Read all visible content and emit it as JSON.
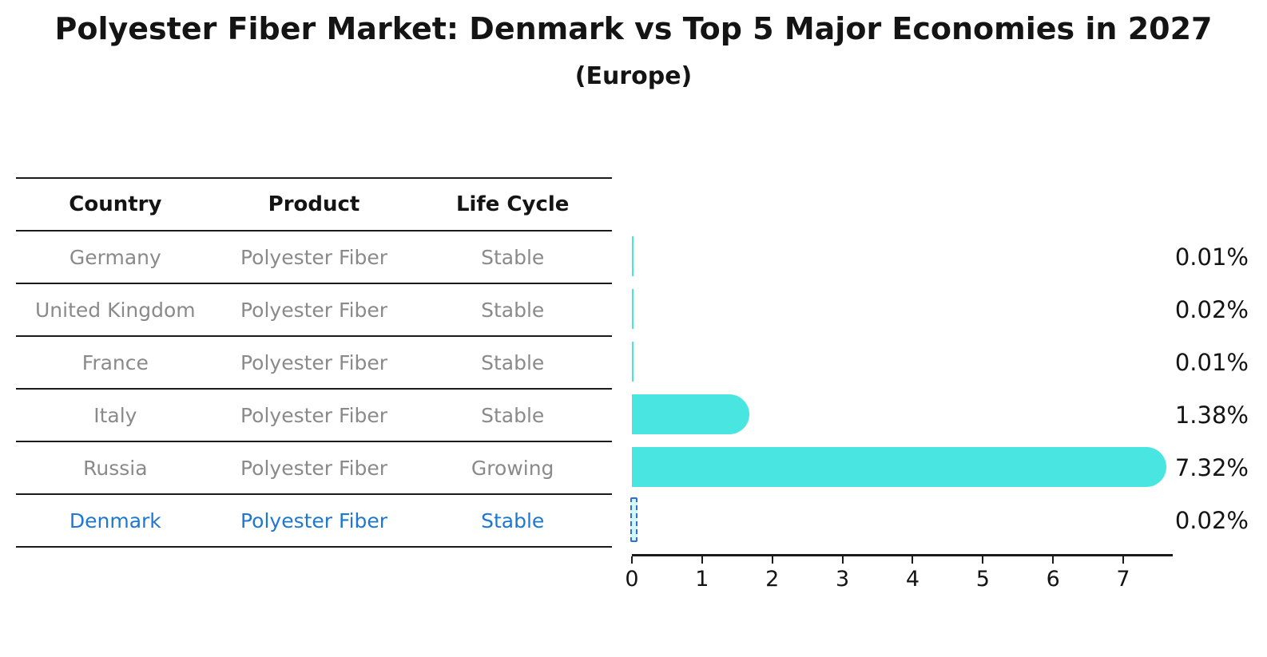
{
  "title": "Polyester Fiber Market: Denmark vs Top 5 Major Economies in 2027",
  "subtitle": "(Europe)",
  "table": {
    "headers": [
      "Country",
      "Product",
      "Life Cycle"
    ],
    "rows": [
      {
        "country": "Germany",
        "product": "Polyester Fiber",
        "life_cycle": "Stable",
        "highlight": false
      },
      {
        "country": "United Kingdom",
        "product": "Polyester Fiber",
        "life_cycle": "Stable",
        "highlight": false
      },
      {
        "country": "France",
        "product": "Polyester Fiber",
        "life_cycle": "Stable",
        "highlight": false
      },
      {
        "country": "Italy",
        "product": "Polyester Fiber",
        "life_cycle": "Stable",
        "highlight": false
      },
      {
        "country": "Russia",
        "product": "Polyester Fiber",
        "life_cycle": "Growing",
        "highlight": false
      },
      {
        "country": "Denmark",
        "product": "Polyester Fiber",
        "life_cycle": "Stable",
        "highlight": true
      }
    ]
  },
  "chart_data": {
    "type": "bar",
    "orientation": "horizontal",
    "title": "Polyester Fiber Market: Denmark vs Top 5 Major Economies in 2027",
    "subtitle": "(Europe)",
    "categories": [
      "Germany",
      "United Kingdom",
      "France",
      "Italy",
      "Russia",
      "Denmark"
    ],
    "values": [
      0.01,
      0.02,
      0.01,
      1.38,
      7.32,
      0.02
    ],
    "value_labels": [
      "0.01%",
      "0.02%",
      "0.01%",
      "1.38%",
      "7.32%",
      "0.02%"
    ],
    "x_ticks": [
      "0",
      "1",
      "2",
      "3",
      "4",
      "5",
      "6",
      "7"
    ],
    "xlim": [
      0,
      7.7
    ],
    "xlabel": "",
    "ylabel": "",
    "grid": false,
    "legend": "none",
    "bar_color": "#49e5e1",
    "highlight": {
      "category": "Denmark",
      "style": "dashed-outline",
      "outline_color": "#2e6fd8",
      "text_color": "#1e78d2"
    }
  }
}
